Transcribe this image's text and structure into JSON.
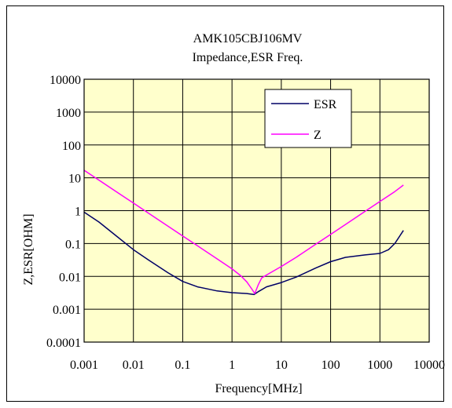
{
  "chart_data": {
    "type": "line",
    "title": "AMK105CBJ106MV",
    "subtitle": "Impedance,ESR Freq.",
    "xlabel": "Frequency[MHz]",
    "ylabel": "Z,ESR[OHM]",
    "x_scale": "log",
    "y_scale": "log",
    "xlim": [
      0.001,
      10000
    ],
    "ylim": [
      0.0001,
      10000
    ],
    "x_ticks": [
      {
        "value": 0.001,
        "label": "0.001"
      },
      {
        "value": 0.01,
        "label": "0.01"
      },
      {
        "value": 0.1,
        "label": "0.1"
      },
      {
        "value": 1,
        "label": "1"
      },
      {
        "value": 10,
        "label": "10"
      },
      {
        "value": 100,
        "label": "100"
      },
      {
        "value": 1000,
        "label": "1000"
      },
      {
        "value": 10000,
        "label": "10000"
      }
    ],
    "y_ticks": [
      {
        "value": 10000,
        "label": "10000"
      },
      {
        "value": 1000,
        "label": "1000"
      },
      {
        "value": 100,
        "label": "100"
      },
      {
        "value": 10,
        "label": "10"
      },
      {
        "value": 1,
        "label": "1"
      },
      {
        "value": 0.1,
        "label": "0.1"
      },
      {
        "value": 0.01,
        "label": "0.01"
      },
      {
        "value": 0.001,
        "label": "0.001"
      },
      {
        "value": 0.0001,
        "label": "0.0001"
      }
    ],
    "grid": true,
    "legend_position": "top-right",
    "plot_background": "#ffffcc",
    "series": [
      {
        "name": "ESR",
        "color": "#000066",
        "points": [
          [
            0.001,
            0.9
          ],
          [
            0.002,
            0.45
          ],
          [
            0.005,
            0.15
          ],
          [
            0.01,
            0.065
          ],
          [
            0.02,
            0.032
          ],
          [
            0.05,
            0.013
          ],
          [
            0.1,
            0.007
          ],
          [
            0.2,
            0.0048
          ],
          [
            0.5,
            0.0036
          ],
          [
            1,
            0.0032
          ],
          [
            2,
            0.003
          ],
          [
            2.8,
            0.0028
          ],
          [
            3.5,
            0.0035
          ],
          [
            5,
            0.0048
          ],
          [
            10,
            0.0065
          ],
          [
            20,
            0.0095
          ],
          [
            50,
            0.018
          ],
          [
            100,
            0.028
          ],
          [
            200,
            0.038
          ],
          [
            500,
            0.045
          ],
          [
            1000,
            0.05
          ],
          [
            1500,
            0.065
          ],
          [
            2000,
            0.1
          ],
          [
            3000,
            0.25
          ]
        ]
      },
      {
        "name": "Z",
        "color": "#ff00ff",
        "points": [
          [
            0.001,
            17
          ],
          [
            0.002,
            8.5
          ],
          [
            0.005,
            3.4
          ],
          [
            0.01,
            1.7
          ],
          [
            0.02,
            0.85
          ],
          [
            0.05,
            0.34
          ],
          [
            0.1,
            0.17
          ],
          [
            0.2,
            0.085
          ],
          [
            0.5,
            0.034
          ],
          [
            1,
            0.017
          ],
          [
            1.5,
            0.0105
          ],
          [
            2,
            0.0068
          ],
          [
            2.5,
            0.0042
          ],
          [
            2.9,
            0.003
          ],
          [
            3.4,
            0.0055
          ],
          [
            4,
            0.009
          ],
          [
            5,
            0.011
          ],
          [
            10,
            0.02
          ],
          [
            20,
            0.038
          ],
          [
            50,
            0.095
          ],
          [
            100,
            0.19
          ],
          [
            200,
            0.38
          ],
          [
            500,
            0.95
          ],
          [
            1000,
            1.9
          ],
          [
            2000,
            3.8
          ],
          [
            3000,
            6
          ]
        ]
      }
    ]
  }
}
